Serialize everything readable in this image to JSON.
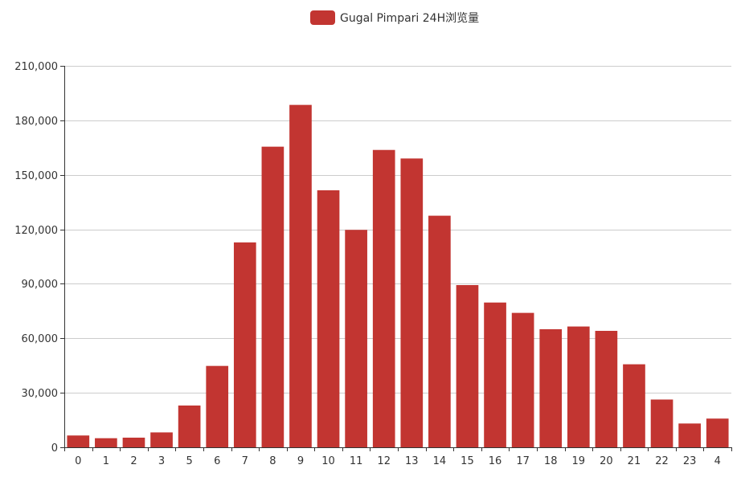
{
  "chart_data": {
    "type": "bar",
    "title": "",
    "xlabel": "",
    "ylabel": "",
    "categories": [
      "0",
      "1",
      "2",
      "3",
      "5",
      "6",
      "7",
      "8",
      "9",
      "10",
      "11",
      "12",
      "13",
      "14",
      "15",
      "16",
      "17",
      "18",
      "19",
      "20",
      "21",
      "22",
      "23",
      "4"
    ],
    "series": [
      {
        "name": "Gugal Pimpari 24H浏览量",
        "values": [
          6500,
          5000,
          5300,
          8200,
          23000,
          44800,
          112800,
          165500,
          188500,
          141500,
          119700,
          163700,
          159000,
          127500,
          89300,
          79700,
          74000,
          65000,
          66500,
          64100,
          45700,
          26300,
          13100,
          15800
        ]
      }
    ],
    "ylim": [
      0,
      210000
    ],
    "yticks": [
      0,
      30000,
      60000,
      90000,
      120000,
      150000,
      180000,
      210000
    ],
    "ytick_labels": [
      "0",
      "30,000",
      "60,000",
      "90,000",
      "120,000",
      "150,000",
      "180,000",
      "210,000"
    ],
    "grid": true,
    "legend_position": "top-center",
    "bar_color": "#c23531"
  }
}
